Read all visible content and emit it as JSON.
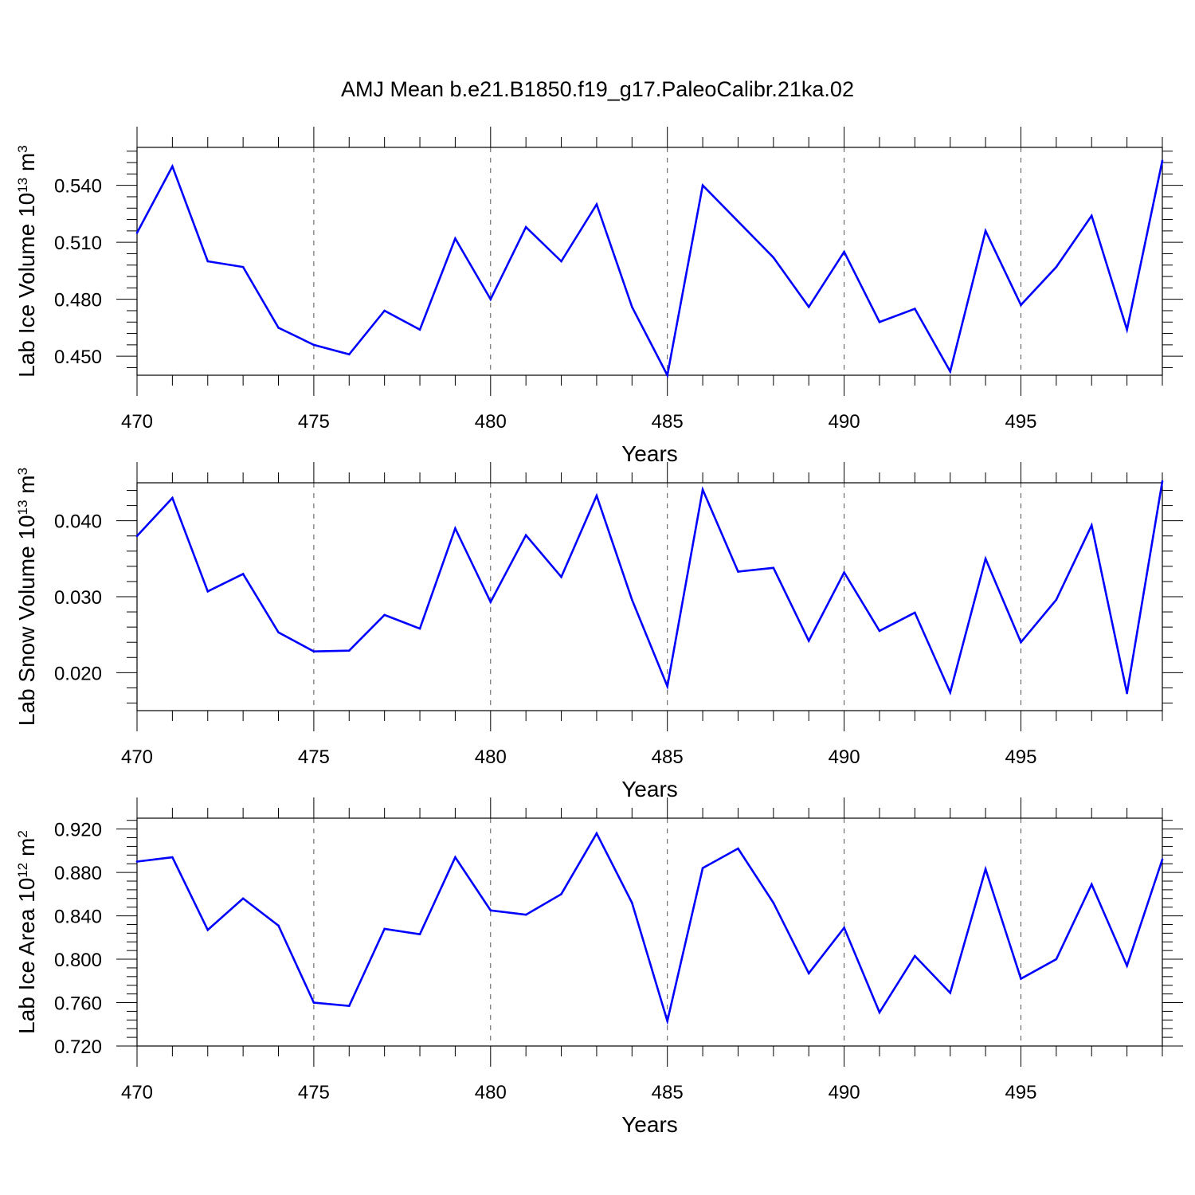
{
  "figure": {
    "title": "AMJ Mean b.e21.B1850.f19_g17.PaleoCalibr.21ka.02",
    "line_color": "#0000ff"
  },
  "chart_data": [
    {
      "type": "line",
      "title": "",
      "xlabel": "Years",
      "ylabel": {
        "main": "Lab Ice Volume 10",
        "exp": "13",
        "unit": " m",
        "unit_exp": "3"
      },
      "xlim": [
        470,
        499
      ],
      "ylim": [
        0.44,
        0.56
      ],
      "xticks": [
        470,
        475,
        480,
        485,
        490,
        495
      ],
      "xtick_labels": [
        "470",
        "475",
        "480",
        "485",
        "490",
        "495"
      ],
      "yticks": [
        0.45,
        0.48,
        0.51,
        0.54
      ],
      "ytick_labels": [
        "0.450",
        "0.480",
        "0.510",
        "0.540"
      ],
      "grid": "vertical dashed at major x ticks",
      "x": [
        470,
        471,
        472,
        473,
        474,
        475,
        476,
        477,
        478,
        479,
        480,
        481,
        482,
        483,
        484,
        485,
        486,
        487,
        488,
        489,
        490,
        491,
        492,
        493,
        494,
        495,
        496,
        497,
        498,
        499
      ],
      "y": [
        0.515,
        0.55,
        0.5,
        0.497,
        0.465,
        0.456,
        0.451,
        0.474,
        0.464,
        0.512,
        0.48,
        0.518,
        0.5,
        0.53,
        0.476,
        0.44,
        0.54,
        0.521,
        0.502,
        0.476,
        0.505,
        0.468,
        0.475,
        0.442,
        0.516,
        0.477,
        0.497,
        0.524,
        0.464,
        0.553
      ]
    },
    {
      "type": "line",
      "title": "",
      "xlabel": "Years",
      "ylabel": {
        "main": "Lab Snow Volume 10",
        "exp": "13",
        "unit": " m",
        "unit_exp": "3"
      },
      "xlim": [
        470,
        499
      ],
      "ylim": [
        0.015,
        0.045
      ],
      "xticks": [
        470,
        475,
        480,
        485,
        490,
        495
      ],
      "xtick_labels": [
        "470",
        "475",
        "480",
        "485",
        "490",
        "495"
      ],
      "yticks": [
        0.02,
        0.03,
        0.04
      ],
      "ytick_labels": [
        "0.020",
        "0.030",
        "0.040"
      ],
      "grid": "vertical dashed at major x ticks",
      "x": [
        470,
        471,
        472,
        473,
        474,
        475,
        476,
        477,
        478,
        479,
        480,
        481,
        482,
        483,
        484,
        485,
        486,
        487,
        488,
        489,
        490,
        491,
        492,
        493,
        494,
        495,
        496,
        497,
        498,
        499
      ],
      "y": [
        0.038,
        0.043,
        0.0307,
        0.033,
        0.0253,
        0.0228,
        0.0229,
        0.0276,
        0.0258,
        0.039,
        0.0293,
        0.0381,
        0.0326,
        0.0433,
        0.0296,
        0.0182,
        0.0441,
        0.0333,
        0.0338,
        0.0242,
        0.0332,
        0.0255,
        0.0279,
        0.0174,
        0.035,
        0.024,
        0.0296,
        0.0394,
        0.0173,
        0.0452
      ]
    },
    {
      "type": "line",
      "title": "",
      "xlabel": "Years",
      "ylabel": {
        "main": "Lab Ice Area 10",
        "exp": "12",
        "unit": " m",
        "unit_exp": "2"
      },
      "xlim": [
        470,
        499
      ],
      "ylim": [
        0.72,
        0.93
      ],
      "xticks": [
        470,
        475,
        480,
        485,
        490,
        495
      ],
      "xtick_labels": [
        "470",
        "475",
        "480",
        "485",
        "490",
        "495"
      ],
      "yticks": [
        0.72,
        0.76,
        0.8,
        0.84,
        0.88,
        0.92
      ],
      "ytick_labels": [
        "0.720",
        "0.760",
        "0.800",
        "0.840",
        "0.880",
        "0.920"
      ],
      "grid": "vertical dashed at major x ticks",
      "x": [
        470,
        471,
        472,
        473,
        474,
        475,
        476,
        477,
        478,
        479,
        480,
        481,
        482,
        483,
        484,
        485,
        486,
        487,
        488,
        489,
        490,
        491,
        492,
        493,
        494,
        495,
        496,
        497,
        498,
        499
      ],
      "y": [
        0.89,
        0.894,
        0.827,
        0.856,
        0.831,
        0.76,
        0.757,
        0.828,
        0.823,
        0.894,
        0.845,
        0.841,
        0.86,
        0.916,
        0.852,
        0.743,
        0.884,
        0.902,
        0.852,
        0.787,
        0.829,
        0.751,
        0.803,
        0.769,
        0.883,
        0.782,
        0.8,
        0.869,
        0.794,
        0.892
      ]
    }
  ]
}
